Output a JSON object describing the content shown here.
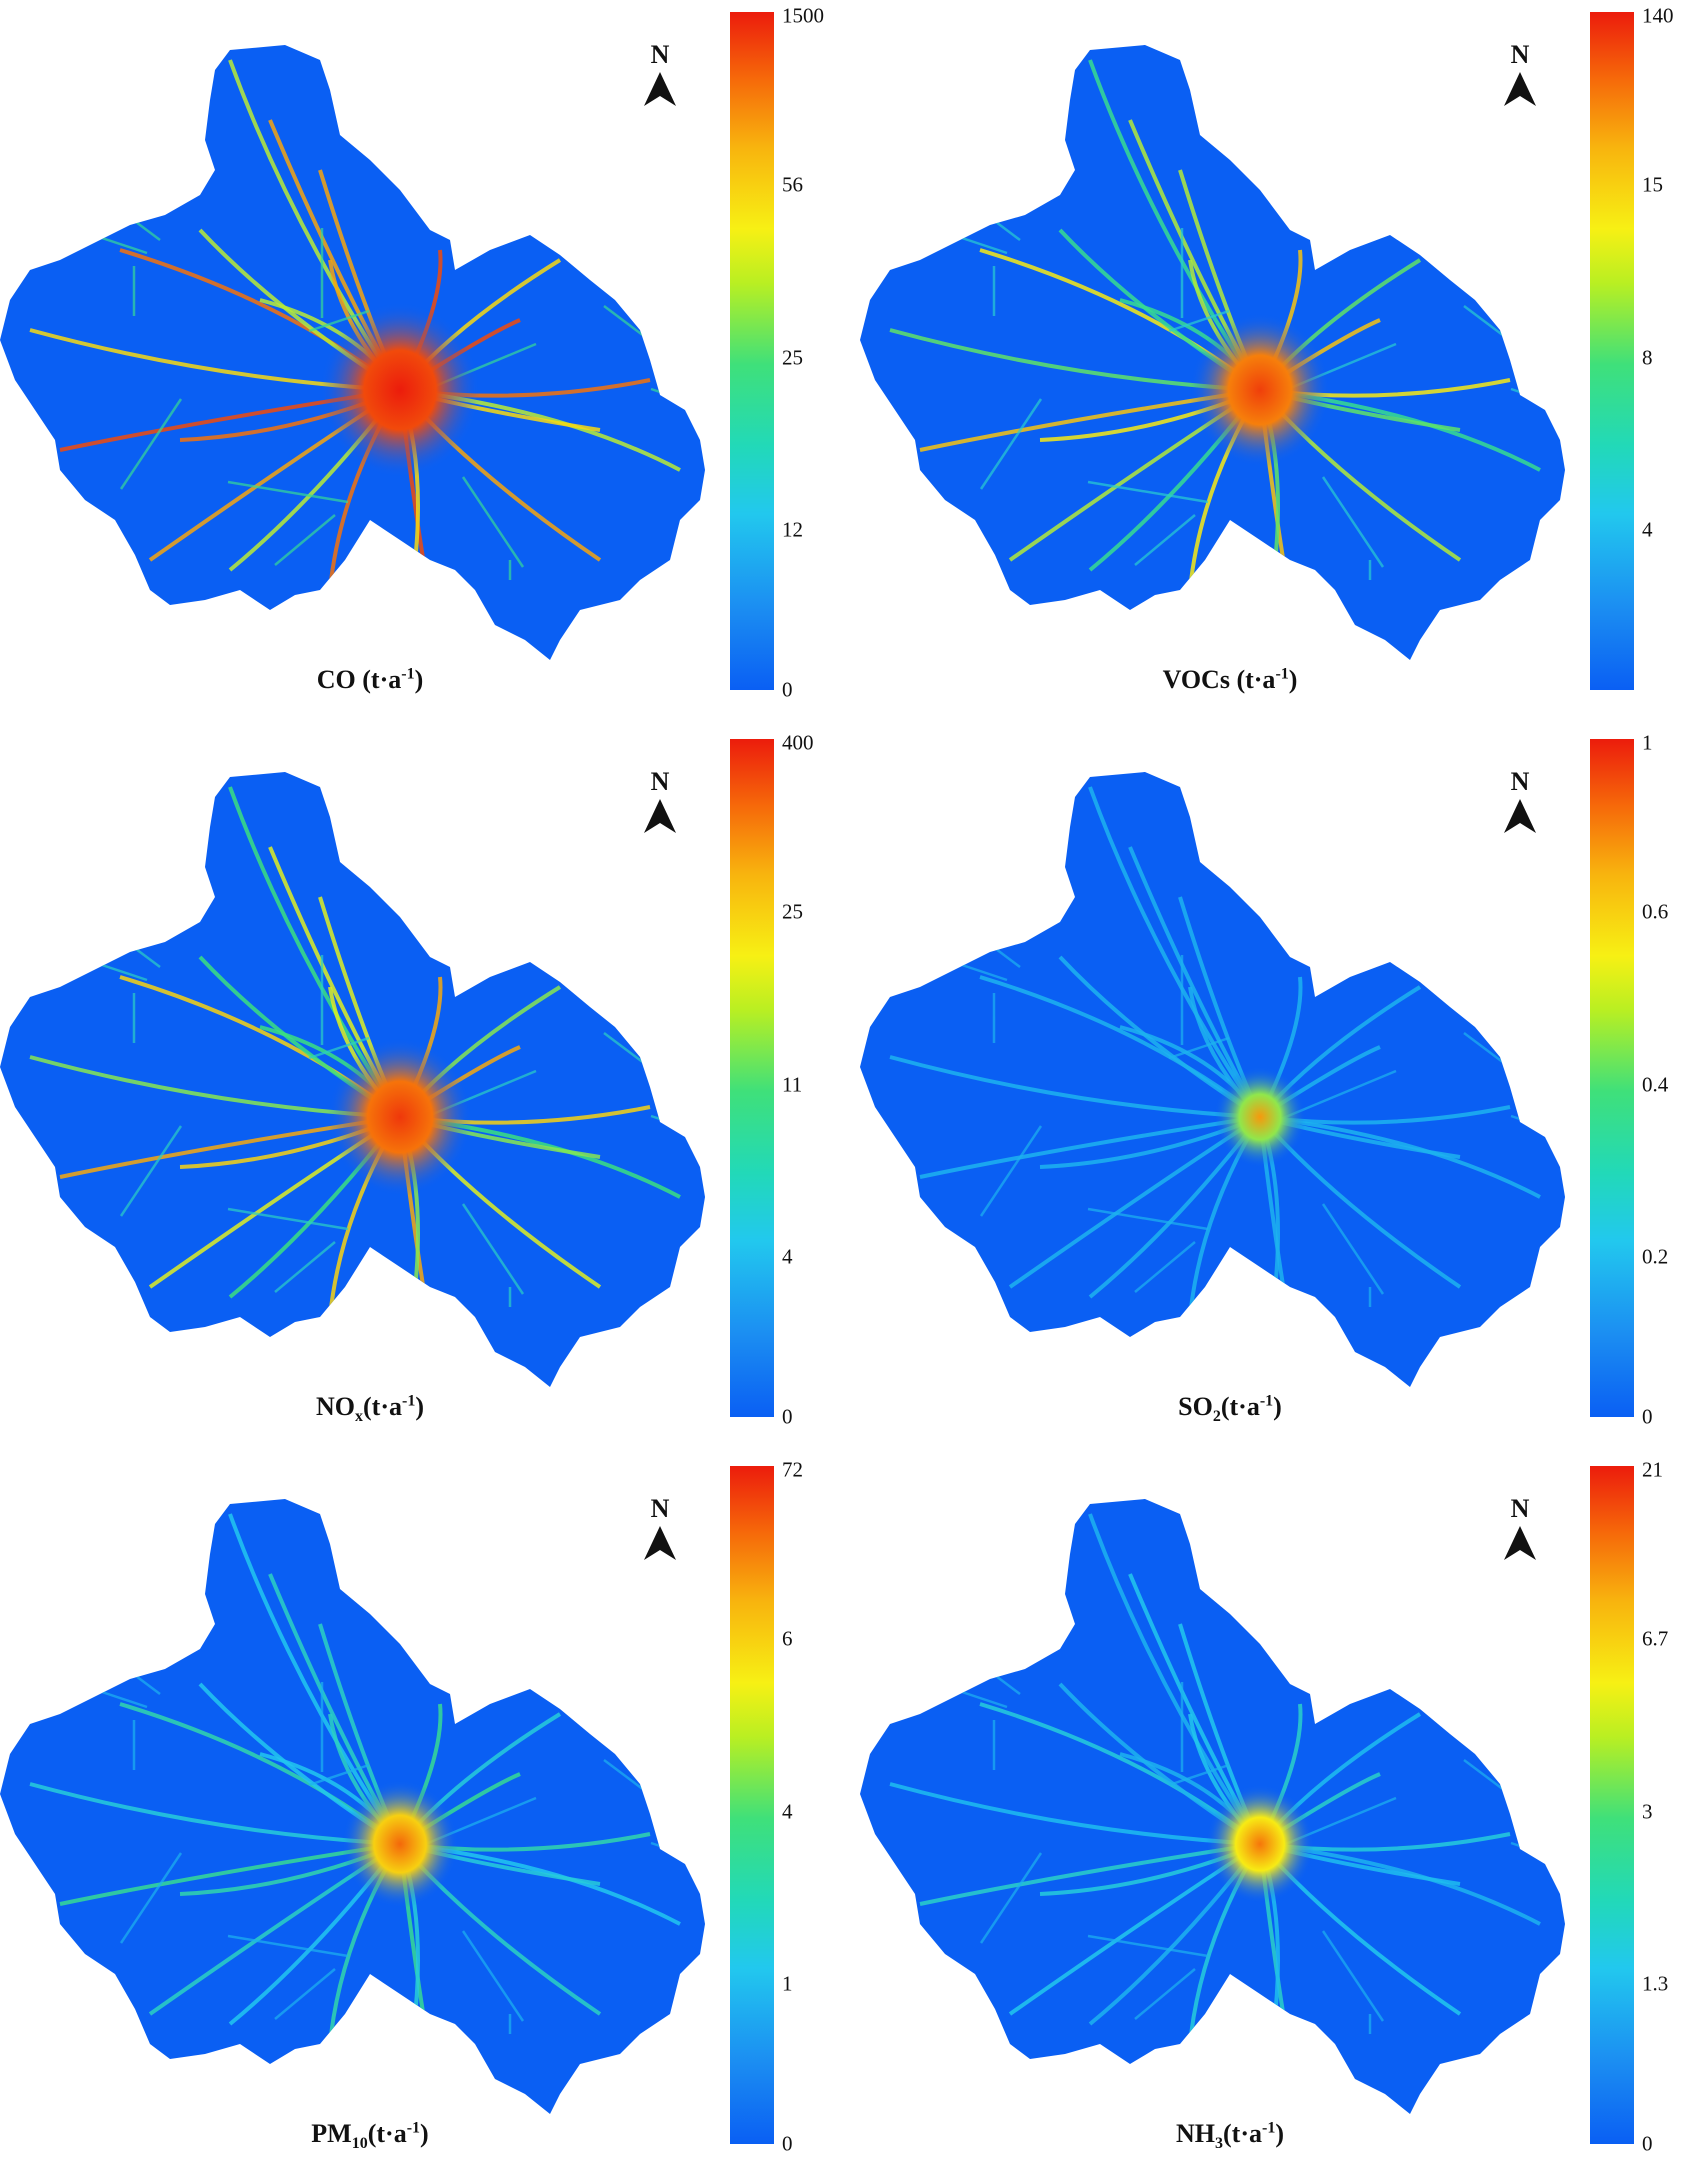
{
  "panels": [
    {
      "caption_main": "CO",
      "caption_sub": "",
      "caption_units_pre": " (t·a",
      "caption_sup": "-1",
      "caption_units_post": ")",
      "north": "N",
      "ticks": [
        "1500",
        "56",
        "25",
        "12",
        "0"
      ],
      "intensity": 1.0
    },
    {
      "caption_main": "VOCs",
      "caption_sub": "",
      "caption_units_pre": " (t·a",
      "caption_sup": "-1",
      "caption_units_post": ")",
      "north": "N",
      "ticks": [
        "140",
        "15",
        "8",
        "4",
        ""
      ],
      "intensity": 0.75
    },
    {
      "caption_main": "NO",
      "caption_sub": "x",
      "caption_units_pre": "(t·a",
      "caption_sup": "-1",
      "caption_units_post": ")",
      "north": "N",
      "ticks": [
        "400",
        "25",
        "11",
        "4",
        "0"
      ],
      "intensity": 0.8
    },
    {
      "caption_main": "SO",
      "caption_sub": "2",
      "caption_units_pre": "(t·a",
      "caption_sup": "-1",
      "caption_units_post": ")",
      "north": "N",
      "ticks": [
        "1",
        "0.6",
        "0.4",
        "0.2",
        "0"
      ],
      "intensity": 0.15
    },
    {
      "caption_main": "PM",
      "caption_sub": "10",
      "caption_units_pre": "(t·a",
      "caption_sup": "-1",
      "caption_units_post": ")",
      "north": "N",
      "ticks": [
        "72",
        "6",
        "4",
        "1",
        "0"
      ],
      "intensity": 0.45
    },
    {
      "caption_main": "NH",
      "caption_sub": "3",
      "caption_units_pre": "(t·a",
      "caption_sup": "-1",
      "caption_units_post": ")",
      "north": "N",
      "ticks": [
        "21",
        "6.7",
        "3",
        "1.3",
        "0"
      ],
      "intensity": 0.35
    }
  ],
  "colors": {
    "background": "#0a5ff3",
    "road_low": "#22c8ee",
    "road_mid": "#f7d414",
    "hot": "#ec1c0c",
    "warm": "#f66a0a"
  }
}
